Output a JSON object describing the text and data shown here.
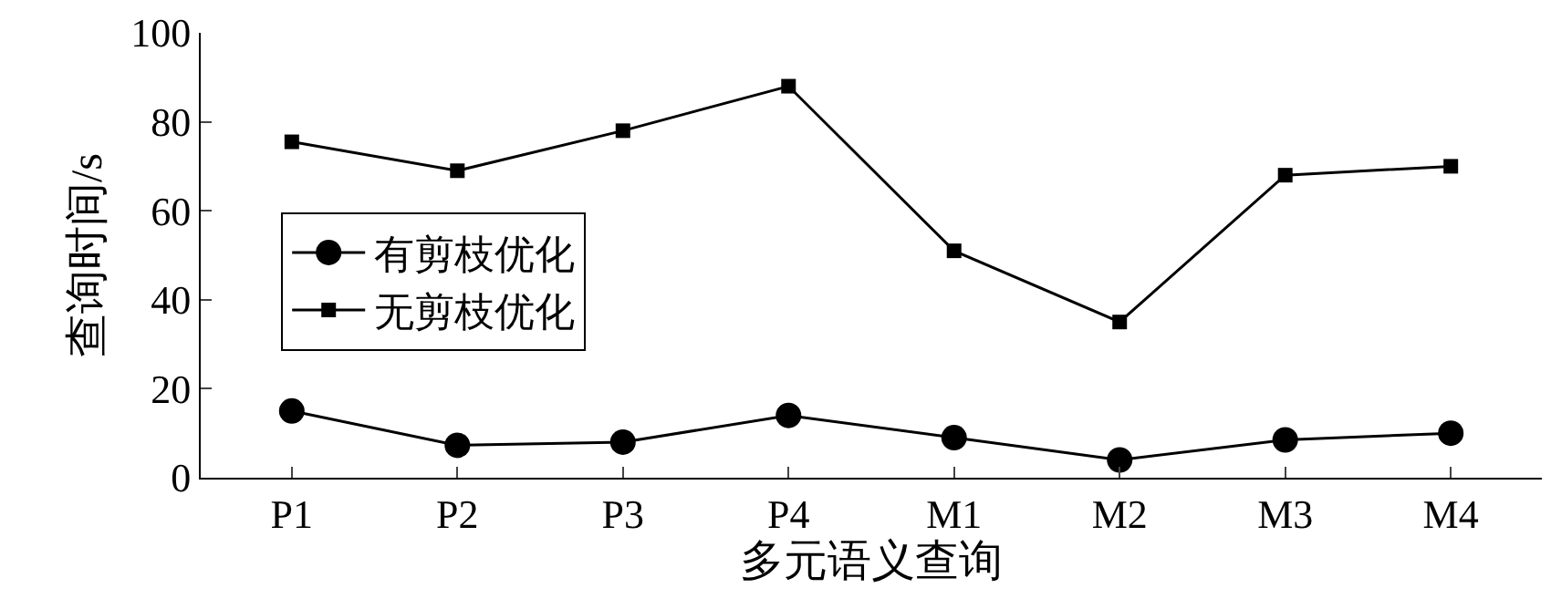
{
  "chart_data": {
    "type": "line",
    "xlabel": "多元语义查询",
    "ylabel": "查询时间/s",
    "categories": [
      "P1",
      "P2",
      "P3",
      "P4",
      "M1",
      "M2",
      "M3",
      "M4"
    ],
    "series": [
      {
        "name": "有剪枝优化",
        "color": "#000000",
        "marker": "circle",
        "values": [
          15,
          7.3,
          8,
          14,
          9,
          4,
          8.5,
          10
        ]
      },
      {
        "name": "无剪枝优化",
        "color": "#000000",
        "marker": "square",
        "values": [
          75.5,
          69,
          78,
          88,
          51,
          35,
          68,
          70
        ]
      }
    ],
    "ylim": [
      0,
      100
    ],
    "yticks": [
      0,
      20,
      40,
      60,
      80,
      100
    ],
    "legend": "left",
    "line_style": "solid"
  }
}
